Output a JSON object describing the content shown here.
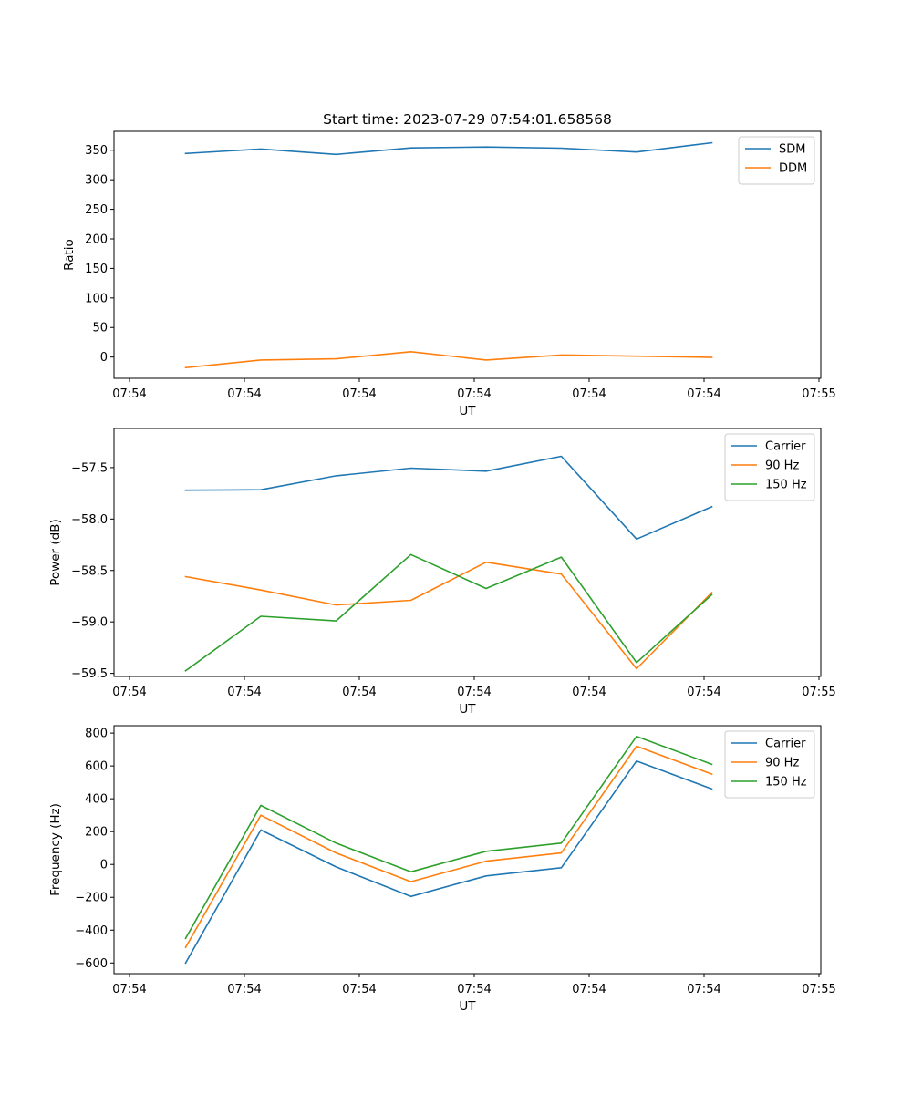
{
  "figure_title": "Start time: 2023-07-29 07:54:01.658568",
  "colors": {
    "c0": "#1f77b4",
    "c1": "#ff7f0e",
    "c2": "#2ca02c"
  },
  "chart_data": [
    {
      "type": "line",
      "title": "Start time: 2023-07-29 07:54:01.658568",
      "xlabel": "UT",
      "ylabel": "Ratio",
      "legend_position": "top-right",
      "x_tick_labels": [
        "07:54",
        "07:54",
        "07:54",
        "07:54",
        "07:54",
        "07:54",
        "07:54"
      ],
      "x_end_label": "07:55",
      "y_ticks": [
        0,
        50,
        100,
        150,
        200,
        250,
        300,
        350
      ],
      "ylim": [
        -36,
        382
      ],
      "x": [
        1,
        2,
        3,
        4,
        5,
        6,
        7,
        8
      ],
      "series": [
        {
          "name": "SDM",
          "color": "#1f77b4",
          "values": [
            344.5,
            352,
            343,
            354,
            355.5,
            353.5,
            347,
            362.5
          ]
        },
        {
          "name": "DDM",
          "color": "#ff7f0e",
          "values": [
            -18,
            -5,
            -3,
            9,
            -5,
            3.5,
            1.5,
            -0.5
          ]
        }
      ]
    },
    {
      "type": "line",
      "title": "",
      "xlabel": "UT",
      "ylabel": "Power (dB)",
      "legend_position": "top-right",
      "x_tick_labels": [
        "07:54",
        "07:54",
        "07:54",
        "07:54",
        "07:54",
        "07:54",
        "07:54"
      ],
      "x_end_label": "07:55",
      "y_ticks": [
        -57.5,
        -58.0,
        -58.5,
        -59.0,
        -59.5
      ],
      "y_tick_labels": [
        "−57.5",
        "−58.0",
        "−58.5",
        "−59.0",
        "−59.5"
      ],
      "ylim": [
        -59.53,
        -57.12
      ],
      "x": [
        1,
        2,
        3,
        4,
        5,
        6,
        7,
        8
      ],
      "series": [
        {
          "name": "Carrier",
          "color": "#1f77b4",
          "values": [
            -57.72,
            -57.715,
            -57.58,
            -57.505,
            -57.535,
            -57.39,
            -58.195,
            -57.88
          ]
        },
        {
          "name": "90 Hz",
          "color": "#ff7f0e",
          "values": [
            -58.56,
            -58.69,
            -58.835,
            -58.79,
            -58.42,
            -58.535,
            -59.455,
            -58.715
          ]
        },
        {
          "name": "150 Hz",
          "color": "#2ca02c",
          "values": [
            -59.475,
            -58.945,
            -58.99,
            -58.345,
            -58.675,
            -58.37,
            -59.395,
            -58.735
          ]
        }
      ]
    },
    {
      "type": "line",
      "title": "",
      "xlabel": "UT",
      "ylabel": "Frequency (Hz)",
      "legend_position": "top-right",
      "x_tick_labels": [
        "07:54",
        "07:54",
        "07:54",
        "07:54",
        "07:54",
        "07:54",
        "07:54"
      ],
      "x_end_label": "07:55",
      "y_ticks": [
        800,
        600,
        400,
        200,
        0,
        -200,
        -400,
        -600
      ],
      "y_tick_labels": [
        "800",
        "600",
        "400",
        "200",
        "0",
        "−200",
        "−400",
        "−600"
      ],
      "ylim": [
        -665,
        845
      ],
      "x": [
        1,
        2,
        3,
        4,
        5,
        6,
        7,
        8
      ],
      "series": [
        {
          "name": "Carrier",
          "color": "#1f77b4",
          "values": [
            -600,
            210,
            -15,
            -195,
            -70,
            -20,
            630,
            460
          ]
        },
        {
          "name": "90 Hz",
          "color": "#ff7f0e",
          "values": [
            -505,
            300,
            70,
            -105,
            20,
            70,
            720,
            550
          ]
        },
        {
          "name": "150 Hz",
          "color": "#2ca02c",
          "values": [
            -450,
            360,
            130,
            -45,
            80,
            130,
            780,
            610
          ]
        }
      ]
    }
  ]
}
